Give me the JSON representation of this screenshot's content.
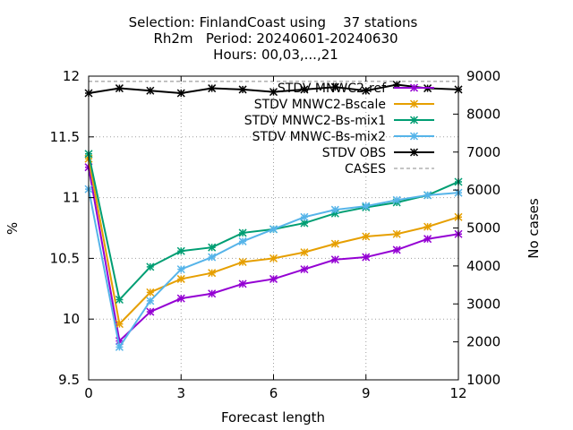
{
  "chart_data": {
    "type": "line",
    "title_lines": [
      "Selection: FinlandCoast using    37 stations",
      "Rh2m   Period: 20240601-20240630",
      "Hours: 00,03,...,21"
    ],
    "xlabel": "Forecast length",
    "ylabel": "%",
    "y2label": "No cases",
    "xlim": [
      0,
      12
    ],
    "ylim": [
      9.5,
      12
    ],
    "y2lim": [
      1000,
      9000
    ],
    "xticks": [
      0,
      3,
      6,
      9,
      12
    ],
    "yticks": [
      9.5,
      10,
      10.5,
      11,
      11.5,
      12
    ],
    "y2ticks": [
      1000,
      2000,
      3000,
      4000,
      5000,
      6000,
      7000,
      8000,
      9000
    ],
    "grid": true,
    "legend_position": "top-right",
    "x": [
      0,
      1,
      2,
      3,
      4,
      5,
      6,
      7,
      8,
      9,
      10,
      11,
      12
    ],
    "series": [
      {
        "name": "STDV MNWC2-ref",
        "color": "#9400d3",
        "marker": "x",
        "values": [
          11.25,
          9.82,
          10.06,
          10.17,
          10.21,
          10.29,
          10.33,
          10.41,
          10.49,
          10.51,
          10.57,
          10.66,
          10.7
        ]
      },
      {
        "name": "STDV MNWC2-Bscale",
        "color": "#e69f00",
        "marker": "x",
        "values": [
          11.32,
          9.96,
          10.22,
          10.33,
          10.38,
          10.47,
          10.5,
          10.55,
          10.62,
          10.68,
          10.7,
          10.76,
          10.84
        ]
      },
      {
        "name": "STDV MNWC2-Bs-mix1",
        "color": "#009e73",
        "marker": "x",
        "values": [
          11.36,
          10.16,
          10.43,
          10.56,
          10.59,
          10.71,
          10.74,
          10.79,
          10.87,
          10.92,
          10.96,
          11.02,
          11.13
        ]
      },
      {
        "name": "STDV MNWC-Bs-mix2",
        "color": "#56b4e9",
        "marker": "x",
        "values": [
          11.07,
          9.77,
          10.15,
          10.41,
          10.51,
          10.64,
          10.74,
          10.84,
          10.9,
          10.93,
          10.98,
          11.02,
          11.04
        ]
      },
      {
        "name": "STDV OBS",
        "color": "#000000",
        "marker": "x",
        "values": [
          11.86,
          11.9,
          11.88,
          11.86,
          11.9,
          11.89,
          11.87,
          11.89,
          11.91,
          11.88,
          11.93,
          11.9,
          11.89
        ]
      },
      {
        "name": "CASES",
        "color": "#888888",
        "dashed": true,
        "axis": "y2",
        "values": [
          8860,
          8860,
          8860,
          8860,
          8860,
          8860,
          8860,
          8860,
          8860,
          8860,
          8860,
          8860,
          8860
        ]
      }
    ]
  }
}
